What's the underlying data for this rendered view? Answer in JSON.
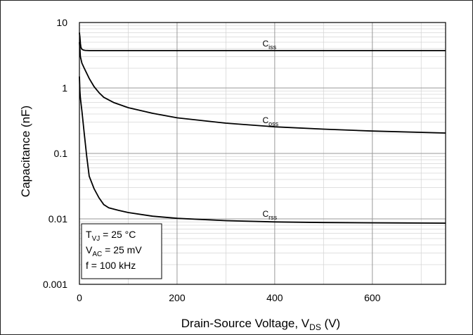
{
  "chart_data": {
    "type": "line",
    "title": "",
    "xlabel_main": "Drain-Source Voltage, V",
    "xlabel_sub": "DS",
    "xlabel_tail": " (V)",
    "ylabel": "Capacitance (nF)",
    "xlim": [
      0,
      750
    ],
    "ylim": [
      0.001,
      10
    ],
    "yscale": "log",
    "grid": true,
    "x_ticks": [
      0,
      200,
      400,
      600
    ],
    "x_tick_labels": [
      "0",
      "200",
      "400",
      "600"
    ],
    "y_ticks": [
      10,
      1,
      0.1,
      0.01,
      0.001
    ],
    "y_tick_labels": [
      "10",
      "1",
      "0.1",
      "0.01",
      "0.001"
    ],
    "series": [
      {
        "name": "Ciss",
        "label_main": "C",
        "label_sub": "iss",
        "label_at": [
          375,
          4.3
        ],
        "x": [
          0,
          1,
          2,
          3,
          5,
          8,
          12,
          20,
          40,
          100,
          300,
          500,
          750
        ],
        "y": [
          7.0,
          6.0,
          4.8,
          4.2,
          3.9,
          3.8,
          3.75,
          3.72,
          3.72,
          3.72,
          3.72,
          3.72,
          3.72
        ]
      },
      {
        "name": "Coss",
        "label_main": "C",
        "label_sub": "oss",
        "label_at": [
          375,
          0.29
        ],
        "x": [
          0,
          1,
          2,
          5,
          10,
          20,
          30,
          40,
          50,
          70,
          100,
          150,
          200,
          300,
          400,
          500,
          600,
          750
        ],
        "y": [
          5.0,
          4.0,
          3.0,
          2.4,
          2.0,
          1.4,
          1.05,
          0.85,
          0.72,
          0.6,
          0.5,
          0.41,
          0.35,
          0.29,
          0.255,
          0.235,
          0.22,
          0.205
        ]
      },
      {
        "name": "Crss",
        "label_main": "C",
        "label_sub": "rss",
        "label_at": [
          375,
          0.0108
        ],
        "x": [
          0,
          1,
          2,
          5,
          10,
          15,
          20,
          30,
          40,
          50,
          60,
          80,
          100,
          150,
          200,
          300,
          400,
          500,
          600,
          750
        ],
        "y": [
          1.5,
          0.9,
          0.7,
          0.45,
          0.2,
          0.09,
          0.045,
          0.029,
          0.021,
          0.0165,
          0.0148,
          0.0135,
          0.0125,
          0.011,
          0.0102,
          0.0094,
          0.009,
          0.0088,
          0.0087,
          0.0086
        ]
      }
    ],
    "conditions": [
      {
        "main": "T",
        "sub": "VJ",
        "rest": " = 25 °C"
      },
      {
        "main": "V",
        "sub": "AC",
        "rest": " = 25 mV"
      },
      {
        "main": "f",
        "sub": "",
        "rest": " = 100 kHz"
      }
    ]
  }
}
